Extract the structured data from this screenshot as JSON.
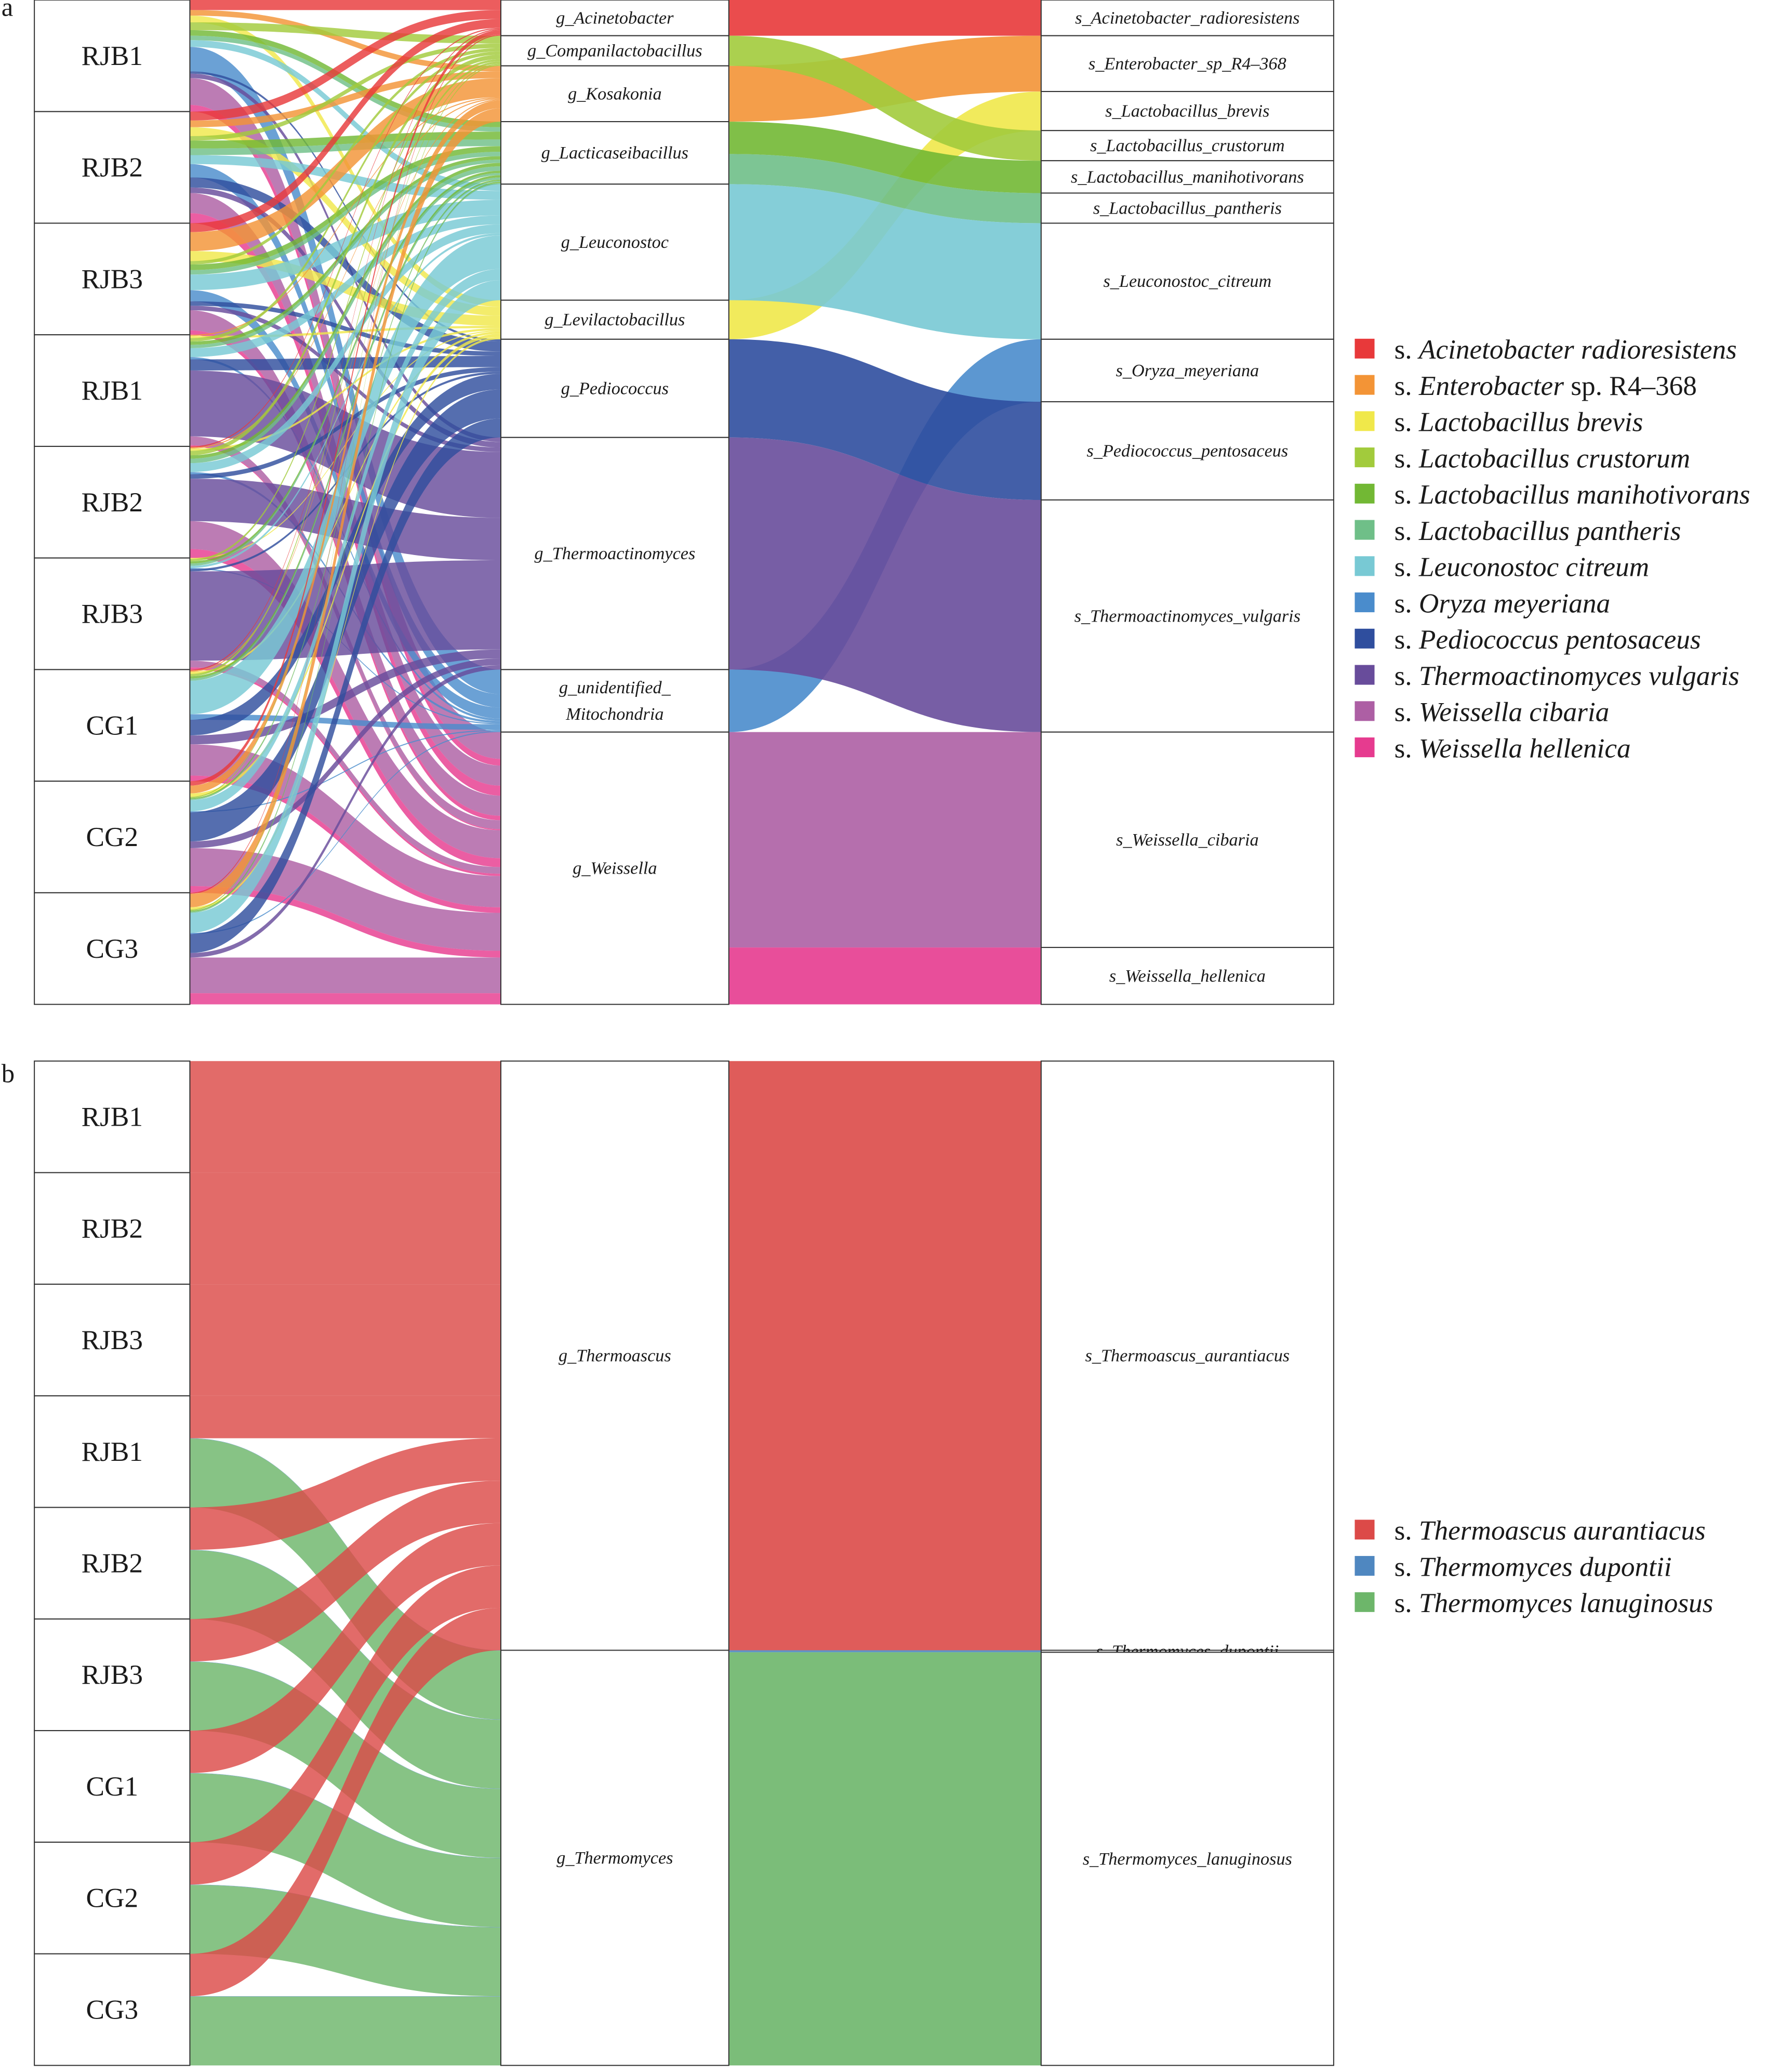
{
  "chart_data": [
    {
      "type": "sankey",
      "panel_label": "a",
      "samples": [
        "RJB1",
        "RJB2",
        "RJB3",
        "RJB1",
        "RJB2",
        "RJB3",
        "CG1",
        "CG2",
        "CG3"
      ],
      "genera": [
        {
          "id": "Acinetobacter",
          "label": [
            "g_Acinetobacter"
          ]
        },
        {
          "id": "Companilactobacillus",
          "label": [
            "g_Companilactobacillus"
          ]
        },
        {
          "id": "Kosakonia",
          "label": [
            "g_Kosakonia"
          ]
        },
        {
          "id": "Lacticaseibacillus",
          "label": [
            "g_Lacticaseibacillus"
          ]
        },
        {
          "id": "Leuconostoc",
          "label": [
            "g_Leuconostoc"
          ]
        },
        {
          "id": "Levilactobacillus",
          "label": [
            "g_Levilactobacillus"
          ]
        },
        {
          "id": "Pediococcus",
          "label": [
            "g_Pediococcus"
          ]
        },
        {
          "id": "Thermoactinomyces",
          "label": [
            "g_Thermoactinomyces"
          ]
        },
        {
          "id": "Mitochondria",
          "label": [
            "g_unidentified_",
            "Mitochondria"
          ]
        },
        {
          "id": "Weissella",
          "label": [
            "g_Weissella"
          ]
        }
      ],
      "species": [
        {
          "label": "s_Acinetobacter_radioresistens",
          "genus": "Acinetobacter",
          "color": "#e8393a",
          "legend": {
            "prefix": "s. ",
            "italic": "Acinetobacter radioresistens",
            "suffix": ""
          }
        },
        {
          "label": "s_Enterobacter_sp_R4–368",
          "genus": "Kosakonia",
          "color": "#f39436",
          "legend": {
            "prefix": "s. ",
            "italic": "Enterobacter",
            "suffix": " sp. R4–368"
          }
        },
        {
          "label": "s_Lactobacillus_brevis",
          "genus": "Levilactobacillus",
          "color": "#f0e84a",
          "legend": {
            "prefix": "s. ",
            "italic": "Lactobacillus brevis",
            "suffix": ""
          }
        },
        {
          "label": "s_Lactobacillus_crustorum",
          "genus": "Companilactobacillus",
          "color": "#a2cb3c",
          "legend": {
            "prefix": "s. ",
            "italic": "Lactobacillus crustorum",
            "suffix": ""
          }
        },
        {
          "label": "s_Lactobacillus_manihotivorans",
          "genus": "Lacticaseibacillus",
          "color": "#72b834",
          "legend": {
            "prefix": "s. ",
            "italic": "Lactobacillus manihotivorans",
            "suffix": ""
          }
        },
        {
          "label": "s_Lactobacillus_pantheris",
          "genus": "Lacticaseibacillus",
          "color": "#6fbf88",
          "legend": {
            "prefix": "s. ",
            "italic": "Lactobacillus pantheris",
            "suffix": ""
          }
        },
        {
          "label": "s_Leuconostoc_citreum",
          "genus": "Leuconostoc",
          "color": "#78c9d4",
          "legend": {
            "prefix": "s. ",
            "italic": "Leuconostoc citreum",
            "suffix": ""
          }
        },
        {
          "label": "s_Oryza_meyeriana",
          "genus": "Mitochondria",
          "color": "#4a8ccc",
          "legend": {
            "prefix": "s. ",
            "italic": "Oryza meyeriana",
            "suffix": ""
          }
        },
        {
          "label": "s_Pediococcus_pentosaceus",
          "genus": "Pediococcus",
          "color": "#2f4e9e",
          "legend": {
            "prefix": "s. ",
            "italic": "Pediococcus pentosaceus",
            "suffix": ""
          }
        },
        {
          "label": "s_Thermoactinomyces_vulgaris",
          "genus": "Thermoactinomyces",
          "color": "#684c9b",
          "legend": {
            "prefix": "s. ",
            "italic": "Thermoactinomyces vulgaris",
            "suffix": ""
          }
        },
        {
          "label": "s_Weissella_cibaria",
          "genus": "Weissella",
          "color": "#ad5fa4",
          "legend": {
            "prefix": "s. ",
            "italic": "Weissella cibaria",
            "suffix": ""
          }
        },
        {
          "label": "s_Weissella_hellenica",
          "genus": "Weissella",
          "color": "#e63b8f",
          "legend": {
            "prefix": "s. ",
            "italic": "Weissella hellenica",
            "suffix": ""
          }
        }
      ],
      "values_percent_by_sample": [
        [
          9,
          5,
          6,
          7,
          5,
          4,
          6,
          22,
          2,
          4,
          24,
          6
        ],
        [
          8,
          6,
          8,
          4,
          7,
          6,
          8,
          12,
          9,
          5,
          18,
          9
        ],
        [
          8,
          17,
          9,
          3,
          5,
          4,
          14,
          10,
          4,
          4,
          18,
          4
        ],
        [
          0,
          1,
          2,
          3,
          3,
          3,
          8,
          2,
          10,
          59,
          8,
          1
        ],
        [
          1,
          1,
          2,
          4,
          3,
          4,
          8,
          2,
          4,
          38,
          25,
          8
        ],
        [
          0,
          0,
          1,
          2,
          2,
          2,
          2,
          1,
          2,
          80,
          6,
          2
        ],
        [
          1,
          1,
          2,
          2,
          2,
          2,
          30,
          5,
          14,
          8,
          28,
          5
        ],
        [
          4,
          7,
          3,
          1,
          1,
          1,
          10,
          1,
          26,
          6,
          34,
          6
        ],
        [
          1,
          12,
          2,
          1,
          1,
          1,
          18,
          1,
          17,
          4,
          32,
          10
        ]
      ]
    },
    {
      "type": "sankey",
      "panel_label": "b",
      "samples": [
        "RJB1",
        "RJB2",
        "RJB3",
        "RJB1",
        "RJB2",
        "RJB3",
        "CG1",
        "CG2",
        "CG3"
      ],
      "genera": [
        {
          "id": "Thermoascus",
          "label": [
            "g_Thermoascus"
          ]
        },
        {
          "id": "Thermomyces",
          "label": [
            "g_Thermomyces"
          ]
        }
      ],
      "species": [
        {
          "label": "s_Thermoascus_aurantiacus",
          "genus": "Thermoascus",
          "color": "#dc4a48",
          "legend": {
            "prefix": "s. ",
            "italic": "Thermoascus aurantiacus",
            "suffix": ""
          }
        },
        {
          "label": "s_Thermomyces_dupontii",
          "genus": "Thermomyces",
          "color": "#4f87c0",
          "legend": {
            "prefix": "s. ",
            "italic": "Thermomyces dupontii",
            "suffix": ""
          }
        },
        {
          "label": "s_Thermomyces_lanuginosus",
          "genus": "Thermomyces",
          "color": "#6db66a",
          "legend": {
            "prefix": "s. ",
            "italic": "Thermomyces lanuginosus",
            "suffix": ""
          }
        }
      ],
      "values_percent_by_sample": [
        [
          100,
          0,
          0
        ],
        [
          100,
          0,
          0
        ],
        [
          100,
          0,
          0
        ],
        [
          38,
          0.3,
          61.7
        ],
        [
          38,
          0.3,
          61.7
        ],
        [
          38,
          0.3,
          61.7
        ],
        [
          38,
          0.3,
          61.7
        ],
        [
          38,
          0.3,
          61.7
        ],
        [
          38,
          0.3,
          61.7
        ]
      ]
    }
  ]
}
